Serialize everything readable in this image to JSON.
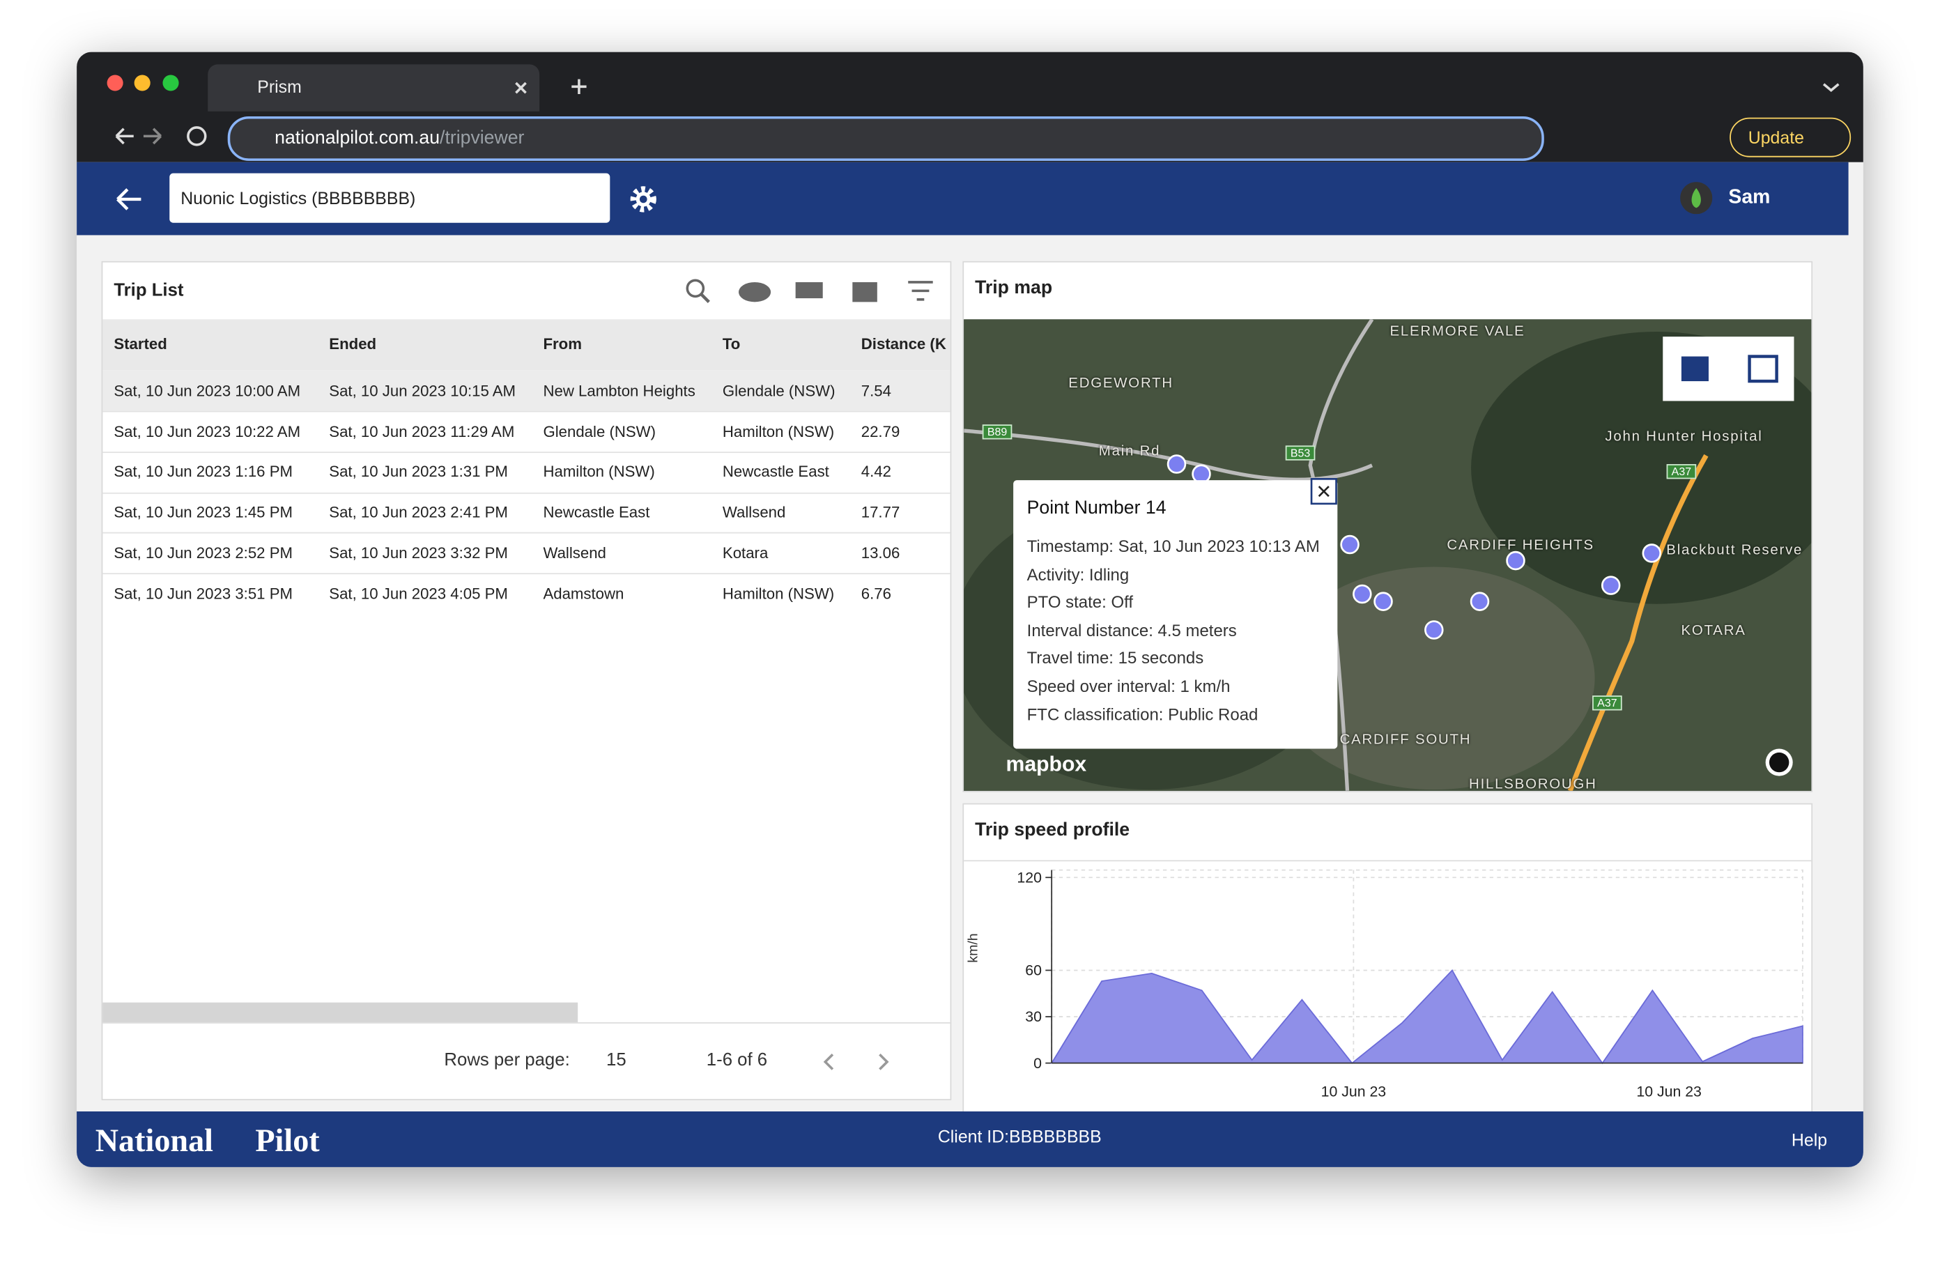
{
  "browser": {
    "tab_title": "Prism",
    "url_host": "nationalpilot.com.au",
    "url_path": "/tripviewer",
    "update_button": "Update"
  },
  "header": {
    "organization": "Nuonic Logistics (BBBBBBBB)",
    "user": "Sam"
  },
  "trip_list": {
    "title": "Trip List",
    "columns": [
      "Started",
      "Ended",
      "From",
      "To",
      "Distance (K"
    ],
    "rows": [
      [
        "Sat, 10 Jun 2023 10:00 AM",
        "Sat, 10 Jun 2023 10:15 AM",
        "New Lambton Heights",
        "Glendale (NSW)",
        "7.54"
      ],
      [
        "Sat, 10 Jun 2023 10:22 AM",
        "Sat, 10 Jun 2023 11:29 AM",
        "Glendale (NSW)",
        "Hamilton (NSW)",
        "22.79"
      ],
      [
        "Sat, 10 Jun 2023 1:16 PM",
        "Sat, 10 Jun 2023 1:31 PM",
        "Hamilton (NSW)",
        "Newcastle East",
        "4.42"
      ],
      [
        "Sat, 10 Jun 2023 1:45 PM",
        "Sat, 10 Jun 2023 2:41 PM",
        "Newcastle East",
        "Wallsend",
        "17.77"
      ],
      [
        "Sat, 10 Jun 2023 2:52 PM",
        "Sat, 10 Jun 2023 3:32 PM",
        "Wallsend",
        "Kotara",
        "13.06"
      ],
      [
        "Sat, 10 Jun 2023 3:51 PM",
        "Sat, 10 Jun 2023 4:05 PM",
        "Adamstown",
        "Hamilton (NSW)",
        "6.76"
      ]
    ],
    "rows_per_page_label": "Rows per page:",
    "rows_per_page": "15",
    "range": "1-6 of 6"
  },
  "trip_map": {
    "title": "Trip map",
    "labels": [
      "ELERMORE VALE",
      "EDGEWORTH",
      "Main Rd",
      "John Hunter Hospital",
      "CARDIFF HEIGHTS",
      "Blackbutt Reserve",
      "KOTARA",
      "CARDIFF SOUTH",
      "HILLSBOROUGH",
      "B89",
      "B53",
      "A37",
      "A37"
    ],
    "popup": {
      "title": "Point Number 14",
      "lines": [
        "Timestamp: Sat, 10 Jun 2023 10:13 AM",
        "Activity: Idling",
        "PTO state: Off",
        "Interval distance: 4.5 meters",
        "Travel time: 15 seconds",
        "Speed over interval: 1 km/h",
        "FTC classification: Public Road"
      ]
    },
    "attribution": "mapbox"
  },
  "speed_chart": {
    "type": "area",
    "title": "Trip speed profile",
    "y_label": "km/h",
    "values": [
      0,
      53,
      58,
      47,
      2,
      41,
      0,
      26,
      60,
      2,
      46,
      0,
      47,
      1,
      16,
      24
    ],
    "ylim": [
      0,
      120
    ],
    "yticks": [
      0,
      30,
      60,
      120
    ],
    "x_tick_labels": [
      "10 Jun 23",
      "10 Jun 23"
    ],
    "color": "#8f8fe8"
  },
  "footer": {
    "brand_left": "National",
    "brand_right": "Pilot",
    "client_id": "Client ID:BBBBBBBB",
    "help": "Help"
  }
}
